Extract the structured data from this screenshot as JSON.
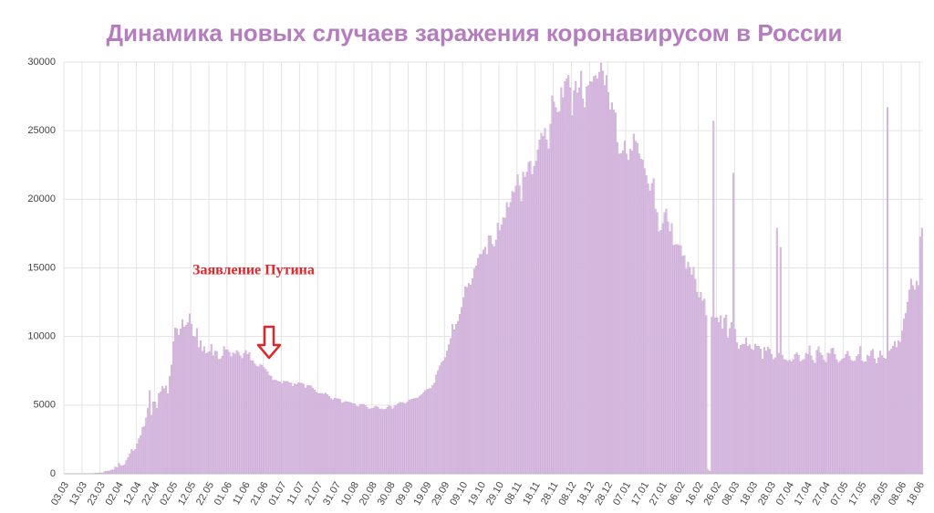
{
  "chart_data": {
    "type": "bar",
    "title": "Динамика новых случаев заражения коронавирусом в России",
    "annotation": "Заявление Путина",
    "color": "#d9bfe1",
    "ylim": [
      0,
      30000
    ],
    "yticks": [
      0,
      5000,
      10000,
      15000,
      20000,
      25000,
      30000
    ],
    "grid": true,
    "categories": [
      "03.03",
      null,
      null,
      null,
      null,
      null,
      null,
      null,
      null,
      null,
      "13.03",
      null,
      null,
      null,
      null,
      null,
      null,
      null,
      null,
      null,
      "23.03",
      null,
      null,
      null,
      null,
      null,
      null,
      null,
      null,
      null,
      "02.04",
      null,
      null,
      null,
      null,
      null,
      null,
      null,
      null,
      null,
      "12.04",
      null,
      null,
      null,
      null,
      null,
      null,
      null,
      null,
      null,
      "22.04",
      null,
      null,
      null,
      null,
      null,
      null,
      null,
      null,
      null,
      "02.05",
      null,
      null,
      null,
      null,
      null,
      null,
      null,
      null,
      null,
      "12.05",
      null,
      null,
      null,
      null,
      null,
      null,
      null,
      null,
      null,
      "22.05",
      null,
      null,
      null,
      null,
      null,
      null,
      null,
      null,
      null,
      "01.06",
      null,
      null,
      null,
      null,
      null,
      null,
      null,
      null,
      null,
      "11.06",
      null,
      null,
      null,
      null,
      null,
      null,
      null,
      null,
      null,
      "21.06",
      null,
      null,
      null,
      null,
      null,
      null,
      null,
      null,
      null,
      "01.07",
      null,
      null,
      null,
      null,
      null,
      null,
      null,
      null,
      null,
      "11.07",
      null,
      null,
      null,
      null,
      null,
      null,
      null,
      null,
      null,
      "21.07",
      null,
      null,
      null,
      null,
      null,
      null,
      null,
      null,
      null,
      "31.07",
      null,
      null,
      null,
      null,
      null,
      null,
      null,
      null,
      null,
      "10.08",
      null,
      null,
      null,
      null,
      null,
      null,
      null,
      null,
      null,
      "20.08",
      null,
      null,
      null,
      null,
      null,
      null,
      null,
      null,
      null,
      "30.08",
      null,
      null,
      null,
      null,
      null,
      null,
      null,
      null,
      null,
      "09.09",
      null,
      null,
      null,
      null,
      null,
      null,
      null,
      null,
      null,
      "19.09",
      null,
      null,
      null,
      null,
      null,
      null,
      null,
      null,
      null,
      "29.09",
      null,
      null,
      null,
      null,
      null,
      null,
      null,
      null,
      null,
      "09.10",
      null,
      null,
      null,
      null,
      null,
      null,
      null,
      null,
      null,
      "19.10",
      null,
      null,
      null,
      null,
      null,
      null,
      null,
      null,
      null,
      "29.10",
      null,
      null,
      null,
      null,
      null,
      null,
      null,
      null,
      null,
      "08.11",
      null,
      null,
      null,
      null,
      null,
      null,
      null,
      null,
      null,
      "18.11",
      null,
      null,
      null,
      null,
      null,
      null,
      null,
      null,
      null,
      "28.11",
      null,
      null,
      null,
      null,
      null,
      null,
      null,
      null,
      null,
      "08.12",
      null,
      null,
      null,
      null,
      null,
      null,
      null,
      null,
      null,
      "18.12",
      null,
      null,
      null,
      null,
      null,
      null,
      null,
      null,
      null,
      "28.12",
      null,
      null,
      null,
      null,
      null,
      null,
      null,
      null,
      null,
      "07.01",
      null,
      null,
      null,
      null,
      null,
      null,
      null,
      null,
      null,
      "17.01",
      null,
      null,
      null,
      null,
      null,
      null,
      null,
      null,
      null,
      "27.01",
      null,
      null,
      null,
      null,
      null,
      null,
      null,
      null,
      null,
      "06.02",
      null,
      null,
      null,
      null,
      null,
      null,
      null,
      null,
      null,
      "16.02",
      null,
      null,
      null,
      null,
      null,
      null,
      null,
      null,
      null,
      "26.02",
      null,
      null,
      null,
      null,
      null,
      null,
      null,
      null,
      null,
      "08.03",
      null,
      null,
      null,
      null,
      null,
      null,
      null,
      null,
      null,
      "18.03",
      null,
      null,
      null,
      null,
      null,
      null,
      null,
      null,
      null,
      "28.03",
      null,
      null,
      null,
      null,
      null,
      null,
      null,
      null,
      null,
      "07.04",
      null,
      null,
      null,
      null,
      null,
      null,
      null,
      null,
      null,
      "17.04",
      null,
      null,
      null,
      null,
      null,
      null,
      null,
      null,
      null,
      "27.04",
      null,
      null,
      null,
      null,
      null,
      null,
      null,
      null,
      null,
      "07.05",
      null,
      null,
      null,
      null,
      null,
      null,
      null,
      null,
      null,
      "17.05",
      null,
      null,
      null,
      null,
      null,
      null,
      null,
      null,
      null,
      null,
      null,
      "29.05",
      null,
      null,
      null,
      null,
      null,
      null,
      null,
      null,
      null,
      "08.06",
      null,
      null,
      null,
      null,
      null,
      null,
      null,
      null,
      null,
      "18.06",
      null
    ],
    "values": [
      0,
      1,
      5,
      1,
      1,
      0,
      3,
      3,
      7,
      6,
      8,
      25,
      11,
      0,
      20,
      24,
      16,
      57,
      53,
      60,
      71,
      57,
      163,
      182,
      196,
      228,
      270,
      302,
      500,
      440,
      771,
      601,
      582,
      658,
      954,
      1175,
      1459,
      1786,
      1667,
      1786,
      2186,
      2558,
      2774,
      3388,
      3448,
      4070,
      4785,
      6060,
      4268,
      5236,
      5236,
      4774,
      5849,
      5966,
      6361,
      6198,
      6411,
      5841,
      7099,
      7933,
      9623,
      10633,
      10581,
      10102,
      10559,
      11231,
      10699,
      10817,
      11012,
      11656,
      10899,
      10028,
      9974,
      10598,
      9200,
      9709,
      8926,
      9263,
      8764,
      8849,
      8894,
      9434,
      8599,
      8946,
      8915,
      8338,
      8371,
      8572,
      9268,
      9035,
      9035,
      8863,
      8536,
      8831,
      8726,
      8985,
      8855,
      8595,
      8404,
      8779,
      8987,
      8706,
      8835,
      8248,
      8246,
      8002,
      7843,
      7790,
      7972,
      7889,
      7728,
      7600,
      7425,
      7176,
      7113,
      6800,
      6852,
      6791,
      6719,
      6693,
      6556,
      6760,
      6718,
      6736,
      6632,
      6611,
      6368,
      6562,
      6509,
      6635,
      6615,
      6611,
      6537,
      6248,
      6422,
      6428,
      6406,
      6234,
      6109,
      5940,
      5842,
      5862,
      5848,
      5811,
      5871,
      5765,
      5635,
      5475,
      5395,
      5509,
      5482,
      5462,
      5427,
      5159,
      5204,
      5267,
      5241,
      5212,
      5189,
      5118,
      5102,
      4945,
      4890,
      5057,
      5065,
      5061,
      4969,
      4839,
      4718,
      4748,
      4767,
      4870,
      4921,
      4852,
      4696,
      4744,
      4676,
      4711,
      4829,
      4980,
      4897,
      4729,
      4952,
      4995,
      5110,
      5205,
      5195,
      5185,
      5099,
      5218,
      5363,
      5406,
      5449,
      5488,
      5509,
      5529,
      5670,
      5762,
      5905,
      6065,
      6148,
      6196,
      6215,
      6431,
      6595,
      7212,
      7523,
      7867,
      8135,
      8232,
      8481,
      8945,
      9412,
      9859,
      10888,
      10499,
      10888,
      11115,
      11615,
      12126,
      12846,
      13634,
      13592,
      13868,
      13754,
      14231,
      14922,
      15150,
      15700,
      15982,
      15982,
      16319,
      16521,
      15982,
      17340,
      17347,
      16710,
      16550,
      17025,
      18283,
      17717,
      18140,
      18665,
      18648,
      19768,
      19404,
      19768,
      20582,
      20498,
      20977,
      21798,
      20977,
      19851,
      21983,
      21608,
      21983,
      22702,
      22778,
      21798,
      22410,
      22778,
      23610,
      24318,
      24822,
      24581,
      25173,
      24326,
      23675,
      25487,
      27543,
      27100,
      26683,
      26338,
      26402,
      28145,
      27403,
      28585,
      28782,
      29039,
      28137,
      26097,
      27927,
      28585,
      27750,
      28137,
      29350,
      27328,
      26689,
      28205,
      28300,
      28585,
      28552,
      28948,
      29018,
      28776,
      29258,
      29935,
      29350,
      28284,
      29018,
      27787,
      26513,
      27039,
      26513,
      26301,
      24150,
      23309,
      23351,
      23541,
      24246,
      23309,
      22851,
      23652,
      23541,
      24763,
      24246,
      24092,
      23315,
      22934,
      22851,
      22245,
      21734,
      21127,
      20598,
      21152,
      21513,
      19290,
      19032,
      17648,
      17741,
      18241,
      19032,
      19290,
      18359,
      17648,
      18241,
      16643,
      16688,
      16714,
      16643,
      16627,
      15861,
      15916,
      14928,
      15419,
      15038,
      14494,
      15048,
      14185,
      13233,
      12828,
      13233,
      12600,
      12742,
      11534,
      300,
      200,
      11409,
      25700,
      11359,
      11359,
      11022,
      11534,
      10565,
      11359,
      11571,
      9908,
      10595,
      11022,
      21900,
      10535,
      9557,
      9079,
      9351,
      9445,
      9437,
      9908,
      9289,
      9393,
      9079,
      9009,
      9445,
      9299,
      9289,
      9088,
      8369,
      9195,
      8951,
      9237,
      9073,
      8711,
      8328,
      8457,
      17900,
      8783,
      16500,
      8646,
      8328,
      8294,
      8195,
      8294,
      8173,
      8326,
      8702,
      8814,
      8633,
      8173,
      8279,
      8328,
      8782,
      8702,
      9321,
      8589,
      8271,
      8053,
      8995,
      9270,
      8814,
      8633,
      8280,
      8114,
      8812,
      8731,
      9117,
      9163,
      8697,
      8319,
      8110,
      8217,
      8367,
      8419,
      8696,
      8926,
      8558,
      8280,
      8183,
      8232,
      8555,
      8699,
      9270,
      8217,
      8143,
      8168,
      8632,
      8554,
      8947,
      9078,
      8368,
      8033,
      8465,
      8946,
      8608,
      8433,
      8373,
      26700,
      8947,
      9074,
      9289,
      9652,
      9211,
      9694,
      9586,
      10407,
      11281,
      11699,
      12505,
      13397,
      14185,
      13721,
      13397,
      14057,
      13721,
      17262,
      17906
    ]
  }
}
